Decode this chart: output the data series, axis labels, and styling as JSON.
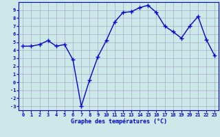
{
  "x": [
    0,
    1,
    2,
    3,
    4,
    5,
    6,
    7,
    8,
    9,
    10,
    11,
    12,
    13,
    14,
    15,
    16,
    17,
    18,
    19,
    20,
    21,
    22,
    23
  ],
  "y": [
    4.5,
    4.5,
    4.7,
    5.2,
    4.5,
    4.7,
    2.8,
    -3.0,
    0.3,
    3.2,
    5.2,
    7.5,
    8.7,
    8.8,
    9.3,
    9.6,
    8.7,
    7.0,
    6.3,
    5.5,
    7.0,
    8.2,
    5.3,
    3.3
  ],
  "ylim": [
    -3.5,
    10.0
  ],
  "xlim": [
    -0.5,
    23.5
  ],
  "yticks": [
    -3,
    -2,
    -1,
    0,
    1,
    2,
    3,
    4,
    5,
    6,
    7,
    8,
    9
  ],
  "xticks": [
    0,
    1,
    2,
    3,
    4,
    5,
    6,
    7,
    8,
    9,
    10,
    11,
    12,
    13,
    14,
    15,
    16,
    17,
    18,
    19,
    20,
    21,
    22,
    23
  ],
  "xlabel": "Graphe des températures (°C)",
  "line_color": "#0000cc",
  "marker": "+",
  "marker_size": 4.0,
  "background_color": "#cce8e8",
  "grid_color": "#aaaacc",
  "axis_label_color": "#0000cc",
  "tick_label_color": "#0000cc",
  "line_width": 1.0,
  "tick_fontsize": 5.0,
  "xlabel_fontsize": 6.0
}
